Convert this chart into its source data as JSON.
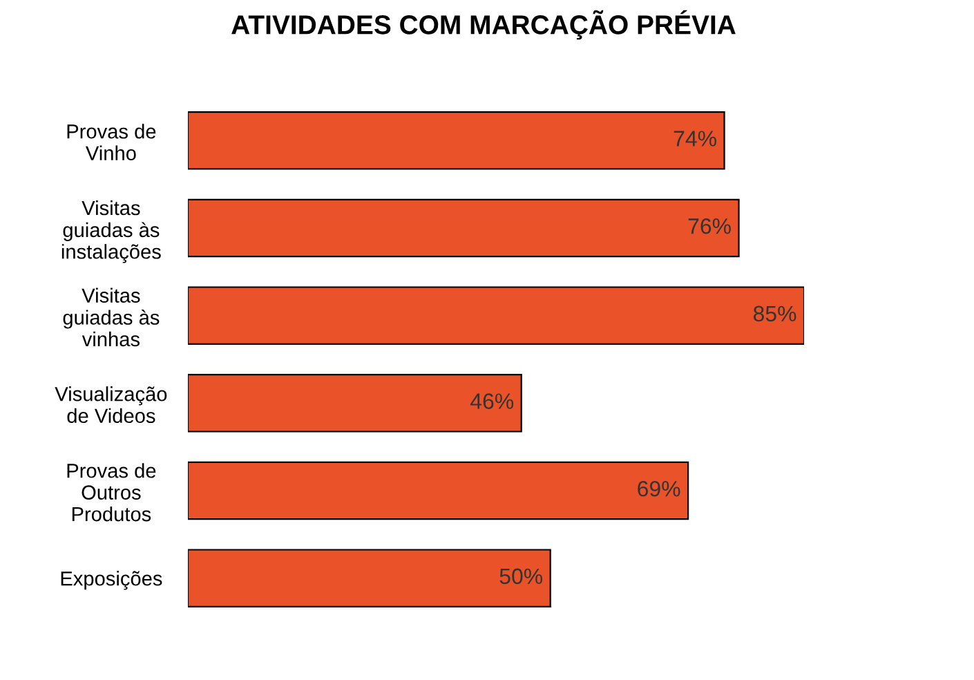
{
  "chart_data": {
    "type": "bar",
    "orientation": "horizontal",
    "title": "ATIVIDADES COM MARCAÇÃO PRÉVIA",
    "categories": [
      "Provas de\nVinho",
      "Visitas\nguiadas às\ninstalações",
      "Visitas\nguiadas às\nvinhas",
      "Visualização\nde Videos",
      "Provas de\nOutros\nProdutos",
      "Exposições"
    ],
    "values": [
      74,
      76,
      85,
      46,
      69,
      50
    ],
    "value_labels": [
      "74%",
      "76%",
      "85%",
      "46%",
      "69%",
      "50%"
    ],
    "color": "#ea5329",
    "tick_labels": "y",
    "grid": false,
    "legend": false
  }
}
